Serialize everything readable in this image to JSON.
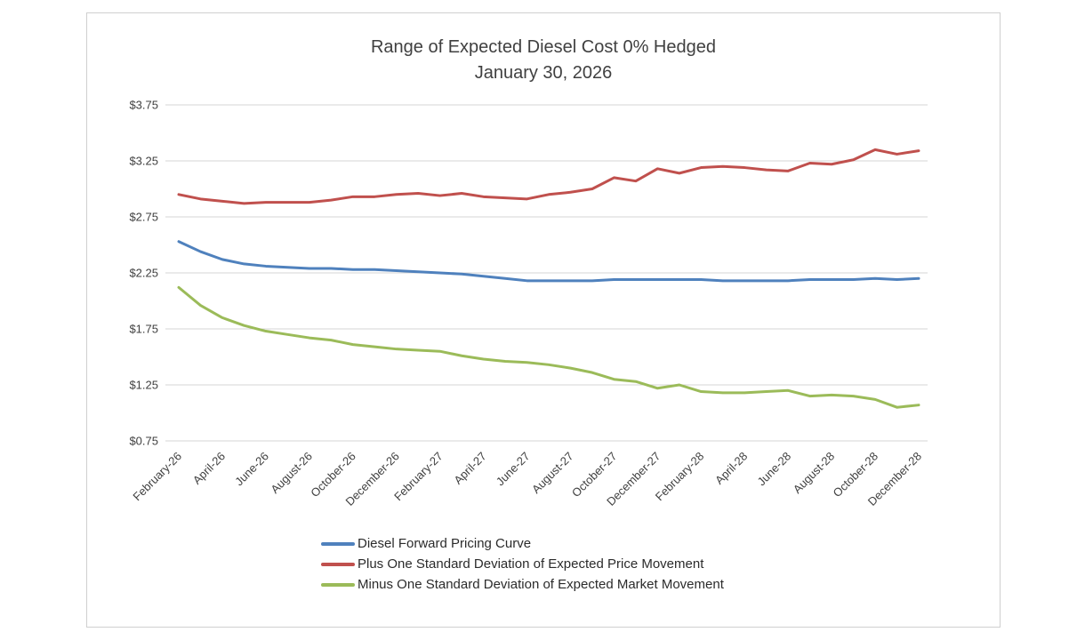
{
  "chart_data": {
    "type": "line",
    "title": "Range of Expected Diesel Cost 0% Hedged",
    "subtitle": "January 30, 2026",
    "ylim": [
      0.75,
      3.75
    ],
    "ytick_step": 0.5,
    "y_tick_labels": [
      "$3.75",
      "$3.25",
      "$2.75",
      "$2.25",
      "$1.75",
      "$1.25",
      "$0.75"
    ],
    "x_tick_labels": [
      "February-26",
      "April-26",
      "June-26",
      "August-26",
      "October-26",
      "December-26",
      "February-27",
      "April-27",
      "June-27",
      "August-27",
      "October-27",
      "December-27",
      "February-28",
      "April-28",
      "June-28",
      "August-28",
      "October-28",
      "December-28"
    ],
    "x_tick_every": 2,
    "n_points": 35,
    "grid": "horizontal",
    "legend_position": "bottom-left",
    "series": [
      {
        "name": "Diesel Forward Pricing Curve",
        "color": "#4F81BD",
        "values": [
          2.53,
          2.44,
          2.37,
          2.33,
          2.31,
          2.3,
          2.29,
          2.29,
          2.28,
          2.28,
          2.27,
          2.26,
          2.25,
          2.24,
          2.22,
          2.2,
          2.18,
          2.18,
          2.18,
          2.18,
          2.19,
          2.19,
          2.19,
          2.19,
          2.19,
          2.18,
          2.18,
          2.18,
          2.18,
          2.19,
          2.19,
          2.19,
          2.2,
          2.19,
          2.2
        ]
      },
      {
        "name": "Plus One Standard Deviation of Expected Price Movement",
        "color": "#C0504D",
        "values": [
          2.95,
          2.91,
          2.89,
          2.87,
          2.88,
          2.88,
          2.88,
          2.9,
          2.93,
          2.93,
          2.95,
          2.96,
          2.94,
          2.96,
          2.93,
          2.92,
          2.91,
          2.95,
          2.97,
          3.0,
          3.1,
          3.07,
          3.18,
          3.14,
          3.19,
          3.2,
          3.19,
          3.17,
          3.16,
          3.23,
          3.22,
          3.26,
          3.35,
          3.31,
          3.34
        ]
      },
      {
        "name": "Minus One Standard Deviation of Expected Market Movement",
        "color": "#9BBB59",
        "values": [
          2.12,
          1.96,
          1.85,
          1.78,
          1.73,
          1.7,
          1.67,
          1.65,
          1.61,
          1.59,
          1.57,
          1.56,
          1.55,
          1.51,
          1.48,
          1.46,
          1.45,
          1.43,
          1.4,
          1.36,
          1.3,
          1.28,
          1.22,
          1.25,
          1.19,
          1.18,
          1.18,
          1.19,
          1.2,
          1.15,
          1.16,
          1.15,
          1.12,
          1.05,
          1.07
        ]
      }
    ]
  }
}
